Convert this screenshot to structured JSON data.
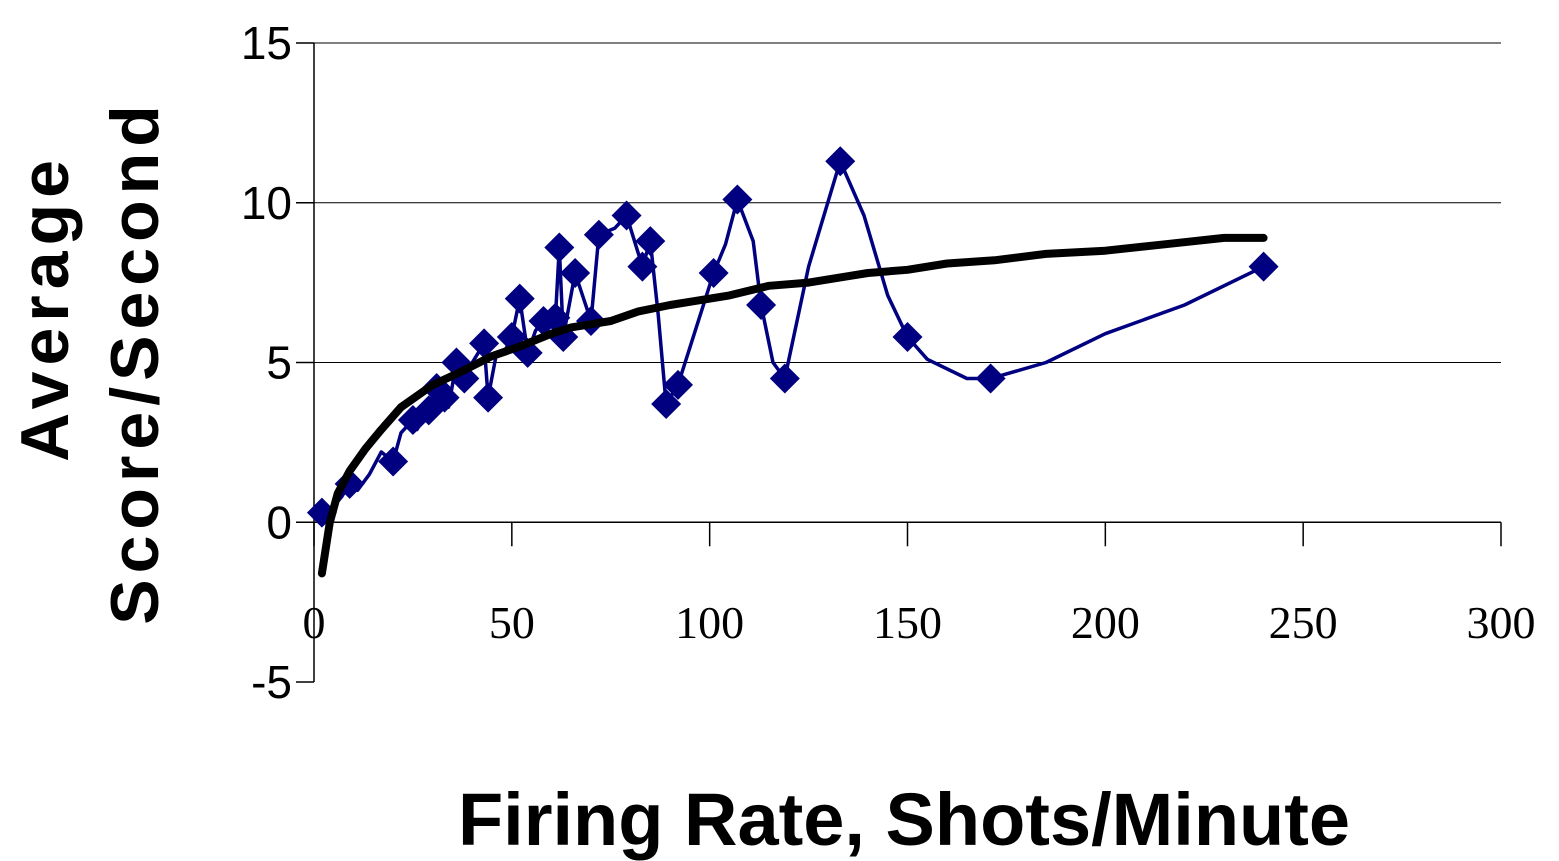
{
  "chart_data": {
    "type": "line",
    "xlabel": "Firing Rate, Shots/Minute",
    "ylabel_lines": [
      "Average",
      "Score/Second"
    ],
    "xlim": [
      0,
      300
    ],
    "ylim": [
      -5,
      15
    ],
    "x_ticks": [
      0,
      50,
      100,
      150,
      200,
      250,
      300
    ],
    "y_ticks": [
      15,
      10,
      5,
      0,
      -5
    ],
    "x_tick_labels": [
      "0",
      "50",
      "100",
      "150",
      "200",
      "250",
      "300"
    ],
    "y_tick_labels": [
      "15",
      "10",
      "5",
      "0",
      "-5"
    ],
    "grid": "horizontal",
    "legend": "none",
    "colors": {
      "data": "#000080",
      "trend": "#000000",
      "grid": "#000000"
    },
    "series": [
      {
        "style": "line-with-diamond-markers",
        "points": [
          [
            2,
            0.3
          ],
          [
            5,
            0.5
          ],
          [
            7,
            0.8
          ],
          [
            9,
            1.2
          ],
          [
            11,
            1.0
          ],
          [
            14,
            1.5
          ],
          [
            17,
            2.2
          ],
          [
            20,
            1.9
          ],
          [
            22,
            2.8
          ],
          [
            25,
            3.2
          ],
          [
            26,
            2.9
          ],
          [
            29,
            3.5
          ],
          [
            31,
            4.2
          ],
          [
            33,
            3.9
          ],
          [
            34,
            3.6
          ],
          [
            36,
            5.0
          ],
          [
            38,
            4.5
          ],
          [
            40,
            5.0
          ],
          [
            43,
            5.6
          ],
          [
            44,
            3.9
          ],
          [
            46,
            5.2
          ],
          [
            48,
            5.3
          ],
          [
            50,
            5.8
          ],
          [
            52,
            7.0
          ],
          [
            54,
            5.3
          ],
          [
            56,
            6.0
          ],
          [
            58,
            6.3
          ],
          [
            61,
            6.4
          ],
          [
            62,
            8.6
          ],
          [
            63,
            5.8
          ],
          [
            66,
            7.8
          ],
          [
            70,
            6.3
          ],
          [
            72,
            9.0
          ],
          [
            76,
            9.2
          ],
          [
            79,
            9.6
          ],
          [
            83,
            8.0
          ],
          [
            85,
            8.8
          ],
          [
            87,
            6.5
          ],
          [
            89,
            3.7
          ],
          [
            92,
            4.3
          ],
          [
            101,
            7.8
          ],
          [
            104,
            8.7
          ],
          [
            107,
            10.1
          ],
          [
            111,
            8.8
          ],
          [
            113,
            6.8
          ],
          [
            116,
            5.0
          ],
          [
            119,
            4.5
          ],
          [
            125,
            8.0
          ],
          [
            133,
            11.3
          ],
          [
            139,
            9.6
          ],
          [
            145,
            7.1
          ],
          [
            150,
            5.8
          ],
          [
            155,
            5.1
          ],
          [
            165,
            4.5
          ],
          [
            171,
            4.5
          ],
          [
            185,
            5.0
          ],
          [
            200,
            5.9
          ],
          [
            220,
            6.8
          ],
          [
            240,
            8.0
          ]
        ],
        "markers_at_x": [
          2,
          9,
          20,
          25,
          29,
          31,
          33,
          36,
          38,
          43,
          44,
          50,
          52,
          54,
          58,
          61,
          62,
          63,
          66,
          70,
          72,
          79,
          83,
          85,
          89,
          92,
          101,
          107,
          113,
          119,
          133,
          150,
          171,
          240
        ]
      },
      {
        "style": "thick-line",
        "points": [
          [
            2,
            -1.6
          ],
          [
            4,
            0.0
          ],
          [
            6,
            0.9
          ],
          [
            9,
            1.6
          ],
          [
            13,
            2.3
          ],
          [
            17,
            2.9
          ],
          [
            22,
            3.6
          ],
          [
            30,
            4.3
          ],
          [
            37,
            4.7
          ],
          [
            45,
            5.2
          ],
          [
            52,
            5.5
          ],
          [
            60,
            5.9
          ],
          [
            65,
            6.1
          ],
          [
            70,
            6.2
          ],
          [
            75,
            6.3
          ],
          [
            82,
            6.6
          ],
          [
            90,
            6.8
          ],
          [
            95,
            6.9
          ],
          [
            105,
            7.1
          ],
          [
            115,
            7.4
          ],
          [
            125,
            7.5
          ],
          [
            135,
            7.7
          ],
          [
            140,
            7.8
          ],
          [
            150,
            7.9
          ],
          [
            160,
            8.1
          ],
          [
            172,
            8.2
          ],
          [
            185,
            8.4
          ],
          [
            200,
            8.5
          ],
          [
            215,
            8.7
          ],
          [
            230,
            8.9
          ],
          [
            240,
            8.9
          ]
        ]
      }
    ]
  }
}
